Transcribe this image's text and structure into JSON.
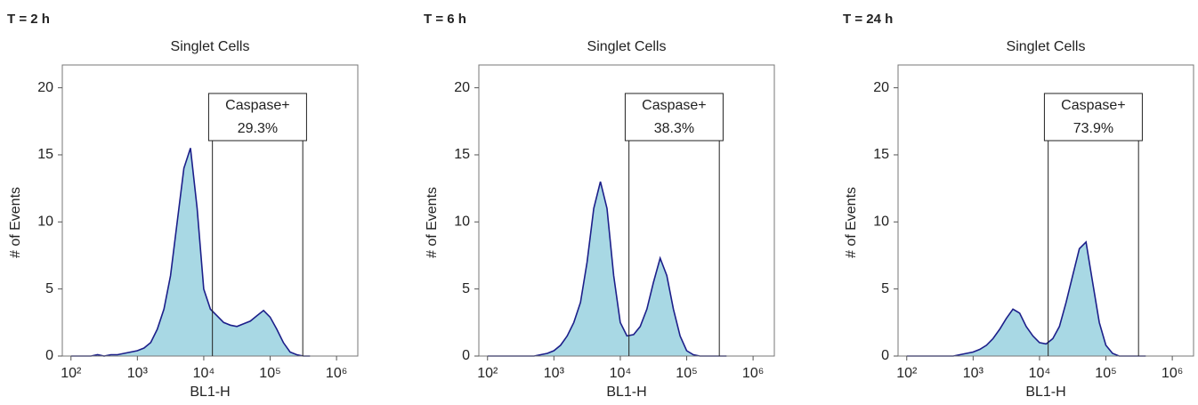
{
  "chart_data": [
    {
      "type": "area",
      "panel_label": "T = 2 h",
      "title": "Singlet Cells",
      "x_label": "BL1-H",
      "y_label": "# of Events",
      "log_x": true,
      "fill": "#a8d8e4",
      "color": "#1c1f8a",
      "xlim": [
        74,
        2090000
      ],
      "ylim": [
        0,
        21.7
      ],
      "xticks": [
        {
          "value": 100,
          "label": "10²"
        },
        {
          "value": 1000,
          "label": "10³"
        },
        {
          "value": 10000,
          "label": "10⁴"
        },
        {
          "value": 100000,
          "label": "10⁵"
        },
        {
          "value": 1000000,
          "label": "10⁶"
        }
      ],
      "yticks": [
        0,
        5,
        10,
        15,
        20
      ],
      "x": [
        100,
        126,
        158,
        200,
        251,
        316,
        398,
        501,
        631,
        794,
        1000,
        1259,
        1585,
        1995,
        2512,
        3162,
        3981,
        5012,
        6310,
        7943,
        10000,
        12589,
        15849,
        19953,
        25119,
        31623,
        39811,
        50119,
        63096,
        79433,
        100000,
        125893,
        158489,
        199526,
        251189,
        316228,
        398107
      ],
      "values": [
        0,
        0,
        0,
        0,
        0.1,
        0,
        0.1,
        0.1,
        0.2,
        0.3,
        0.4,
        0.6,
        1.0,
        2.0,
        3.5,
        6,
        10,
        14,
        15.5,
        11,
        5,
        3.5,
        3,
        2.5,
        2.3,
        2.2,
        2.4,
        2.6,
        3.0,
        3.4,
        2.9,
        2,
        1.0,
        0.3,
        0.1,
        0,
        0
      ],
      "gate": {
        "name": "Caspase+",
        "value": 29.3,
        "value_label": "29.3%",
        "range": [
          13500,
          310000
        ]
      }
    },
    {
      "type": "area",
      "panel_label": "T = 6 h",
      "title": "Singlet Cells",
      "x_label": "BL1-H",
      "y_label": "# of Events",
      "log_x": true,
      "fill": "#a8d8e4",
      "color": "#1c1f8a",
      "xlim": [
        74,
        2090000
      ],
      "ylim": [
        0,
        21.7
      ],
      "xticks": [
        {
          "value": 100,
          "label": "10²"
        },
        {
          "value": 1000,
          "label": "10³"
        },
        {
          "value": 10000,
          "label": "10⁴"
        },
        {
          "value": 100000,
          "label": "10⁵"
        },
        {
          "value": 1000000,
          "label": "10⁶"
        }
      ],
      "yticks": [
        0,
        5,
        10,
        15,
        20
      ],
      "x": [
        100,
        126,
        158,
        200,
        251,
        316,
        398,
        501,
        631,
        794,
        1000,
        1259,
        1585,
        1995,
        2512,
        3162,
        3981,
        5012,
        6310,
        7943,
        10000,
        12589,
        15849,
        19953,
        25119,
        31623,
        39811,
        50119,
        63096,
        79433,
        100000,
        125893,
        158489,
        199526,
        251189,
        316228,
        398107
      ],
      "values": [
        0,
        0,
        0,
        0,
        0,
        0,
        0,
        0,
        0.1,
        0.2,
        0.4,
        0.8,
        1.5,
        2.5,
        4,
        7,
        11,
        13,
        11,
        6,
        2.5,
        1.5,
        1.6,
        2.2,
        3.5,
        5.5,
        7.3,
        6,
        3.5,
        1.5,
        0.4,
        0.1,
        0,
        0,
        0,
        0,
        0
      ],
      "gate": {
        "name": "Caspase+",
        "value": 38.3,
        "value_label": "38.3%",
        "range": [
          13500,
          310000
        ]
      }
    },
    {
      "type": "area",
      "panel_label": "T = 24 h",
      "title": "Singlet Cells",
      "x_label": "BL1-H",
      "y_label": "# of Events",
      "log_x": true,
      "fill": "#a8d8e4",
      "color": "#1c1f8a",
      "xlim": [
        74,
        2090000
      ],
      "ylim": [
        0,
        21.7
      ],
      "xticks": [
        {
          "value": 100,
          "label": "10²"
        },
        {
          "value": 1000,
          "label": "10³"
        },
        {
          "value": 10000,
          "label": "10⁴"
        },
        {
          "value": 100000,
          "label": "10⁵"
        },
        {
          "value": 1000000,
          "label": "10⁶"
        }
      ],
      "yticks": [
        0,
        5,
        10,
        15,
        20
      ],
      "x": [
        100,
        126,
        158,
        200,
        251,
        316,
        398,
        501,
        631,
        794,
        1000,
        1259,
        1585,
        1995,
        2512,
        3162,
        3981,
        5012,
        6310,
        7943,
        10000,
        12589,
        15849,
        19953,
        25119,
        31623,
        39811,
        50119,
        63096,
        79433,
        100000,
        125893,
        158489,
        199526,
        251189,
        316228,
        398107
      ],
      "values": [
        0,
        0,
        0,
        0,
        0,
        0,
        0,
        0,
        0.1,
        0.2,
        0.3,
        0.5,
        0.8,
        1.3,
        2,
        2.8,
        3.5,
        3.2,
        2.2,
        1.5,
        1,
        0.9,
        1.3,
        2.2,
        4,
        6,
        8,
        8.5,
        5.5,
        2.5,
        0.8,
        0.2,
        0,
        0,
        0,
        0,
        0
      ],
      "gate": {
        "name": "Caspase+",
        "value": 73.9,
        "value_label": "73.9%",
        "range": [
          13500,
          310000
        ]
      }
    }
  ]
}
